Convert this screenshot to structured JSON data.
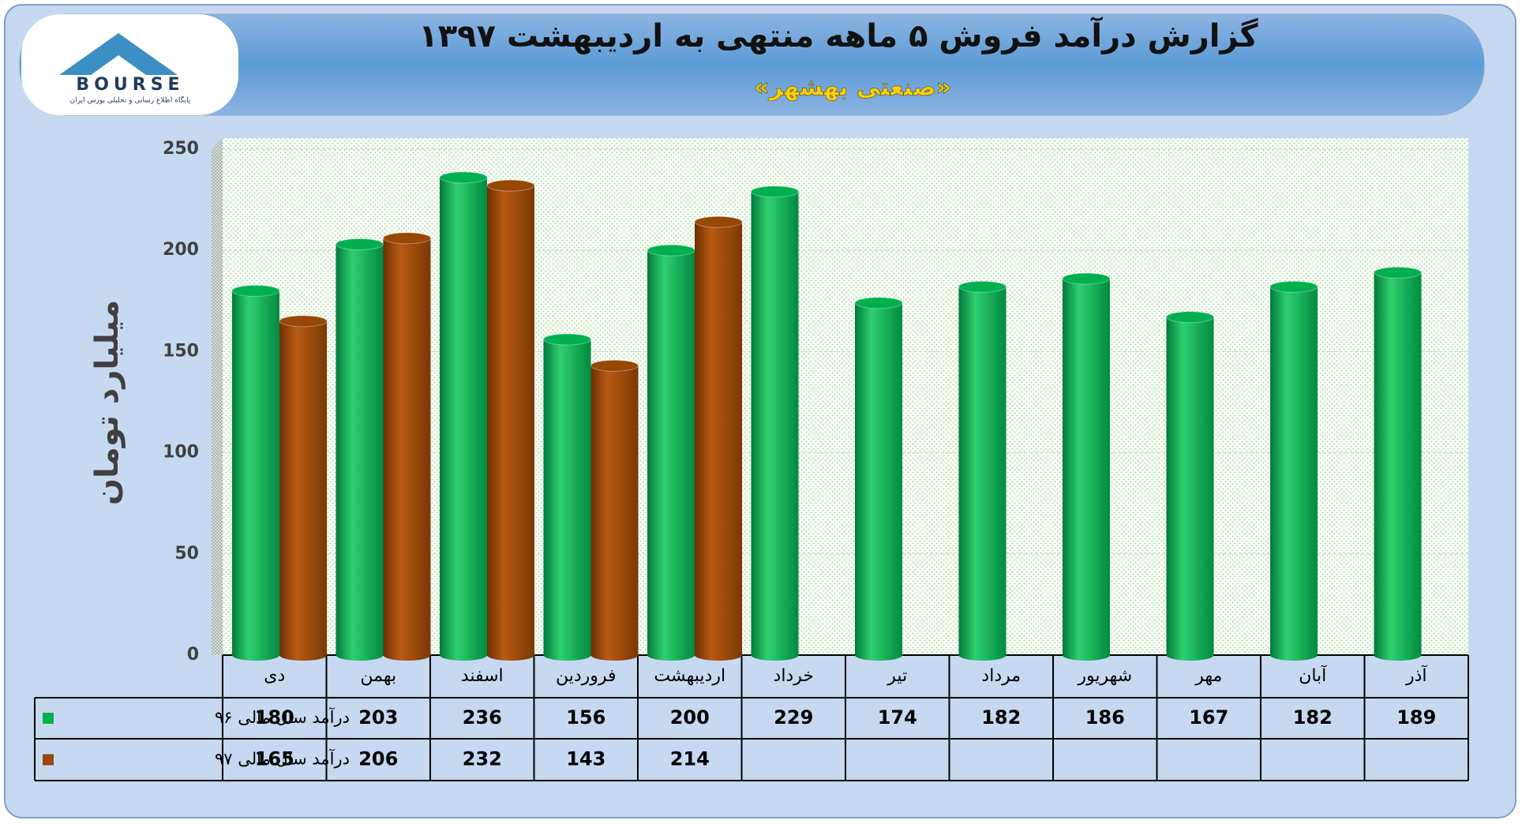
{
  "logo": {
    "name": "BOURSE",
    "tagline": "پایگاه اطلاع رسانی و تحلیلی بورس ایران"
  },
  "chart_data": {
    "type": "bar",
    "title": "گزارش درآمد فروش ۵ ماهه منتهی به اردیبهشت ۱۳۹۷",
    "subtitle": "«صنعتی بهشهر»",
    "y_label": "میلیارد تومان",
    "categories": [
      "دی",
      "بهمن",
      "اسفند",
      "فروردین",
      "اردیبهشت",
      "خرداد",
      "تیر",
      "مرداد",
      "شهریور",
      "مهر",
      "آبان",
      "آذر"
    ],
    "series": [
      {
        "name": "درآمد سال مالی ۹۶",
        "color": "#00b050",
        "values": [
          180,
          203,
          236,
          156,
          200,
          229,
          174,
          182,
          186,
          167,
          182,
          189
        ]
      },
      {
        "name": "درآمد سال مالی ۹۷",
        "color": "#974706",
        "values": [
          165,
          206,
          232,
          143,
          214,
          null,
          null,
          null,
          null,
          null,
          null,
          null
        ]
      }
    ],
    "ylim": [
      0,
      250
    ],
    "yticks": [
      0,
      50,
      100,
      150,
      200,
      250
    ],
    "grid": true
  }
}
